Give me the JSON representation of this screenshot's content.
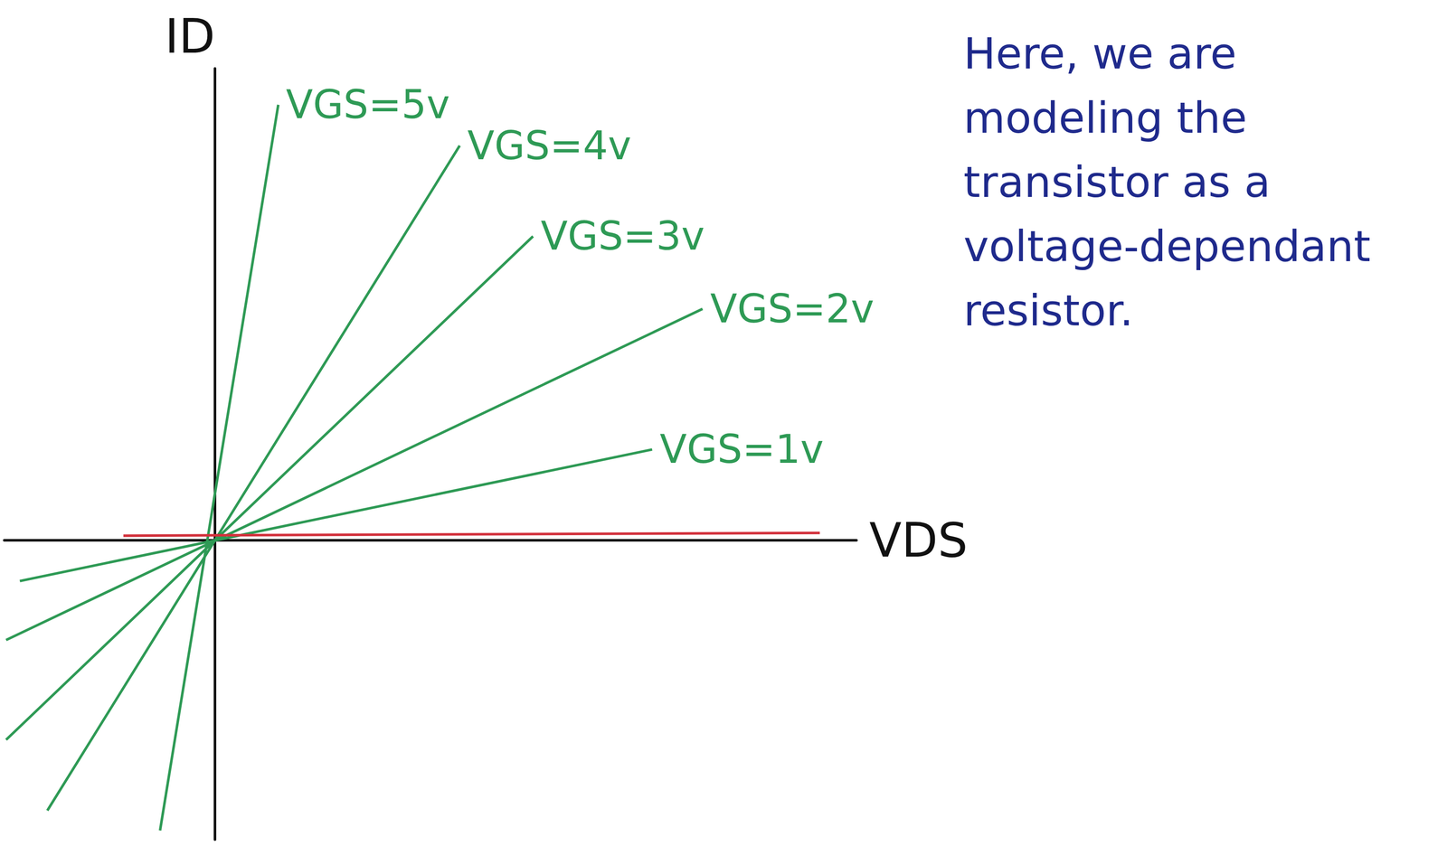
{
  "chart_data": {
    "type": "line",
    "x_label": "VDS",
    "y_label": "ID",
    "xlim": [
      -2.3,
      7
    ],
    "ylim": [
      -3.3,
      5.2
    ],
    "tick_labels": false,
    "grid": false,
    "annotation": "Here, we are modeling the transistor as a voltage-dependant resistor.",
    "series": [
      {
        "name": "VGS=5v",
        "color": "#2e9a55",
        "x": [
          -0.6,
          0.69
        ],
        "values": [
          -3.2,
          4.8
        ]
      },
      {
        "name": "VGS=4v",
        "color": "#2e9a55",
        "x": [
          -1.83,
          2.67
        ],
        "values": [
          -2.98,
          4.35
        ]
      },
      {
        "name": "VGS=3v",
        "color": "#2e9a55",
        "x": [
          -2.28,
          3.47
        ],
        "values": [
          -2.2,
          3.35
        ]
      },
      {
        "name": "VGS=2v",
        "color": "#2e9a55",
        "x": [
          -2.28,
          5.32
        ],
        "values": [
          -1.1,
          2.55
        ]
      },
      {
        "name": "VGS=1v",
        "color": "#2e9a55",
        "x": [
          -2.13,
          4.77
        ],
        "values": [
          -0.45,
          1.0
        ]
      },
      {
        "color": "#d2313c",
        "x": [
          -1.0,
          6.6
        ],
        "values": [
          0.05,
          0.08
        ]
      }
    ]
  }
}
